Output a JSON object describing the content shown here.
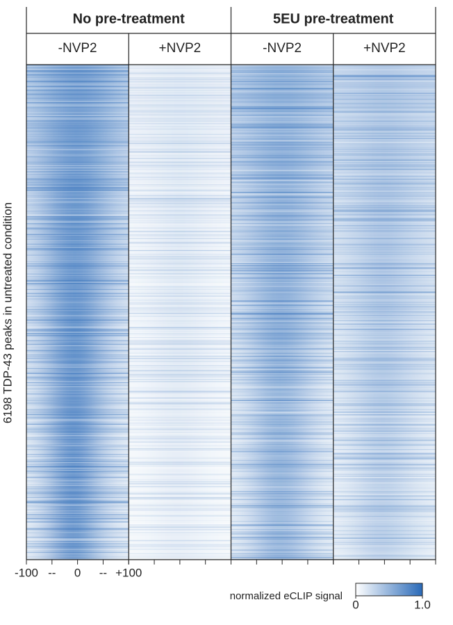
{
  "chart_data": {
    "type": "heatmap",
    "groups": [
      "No pre-treatment",
      "5EU pre-treatment"
    ],
    "ylabel": "6198 TDP-43 peaks in untreated condition",
    "x": [
      -100,
      -75,
      -50,
      -25,
      0,
      25,
      50,
      75,
      100
    ],
    "xlim": [
      -100,
      100
    ],
    "xticks": [
      {
        "value": -100,
        "label": "-100"
      },
      {
        "value": -50,
        "label": "--"
      },
      0,
      {
        "value": 50,
        "label": "--"
      },
      {
        "value": 100,
        "label": "+100"
      }
    ],
    "cmap": [
      "#ffffff",
      "#2a6ab8"
    ],
    "colorbar_label": "normalized eCLIP signal",
    "clim": [
      0,
      1
    ],
    "cticks": [
      0,
      {
        "value": 1,
        "label": "1.0"
      }
    ],
    "panels": [
      {
        "name": "-NVP2",
        "group": 0,
        "values": [
          [
            0.35,
            0.45,
            0.55,
            0.62,
            0.66,
            0.62,
            0.55,
            0.45,
            0.35
          ],
          [
            0.3,
            0.42,
            0.55,
            0.65,
            0.7,
            0.64,
            0.52,
            0.4,
            0.3
          ],
          [
            0.25,
            0.38,
            0.55,
            0.68,
            0.72,
            0.64,
            0.48,
            0.35,
            0.25
          ],
          [
            0.2,
            0.33,
            0.52,
            0.68,
            0.72,
            0.62,
            0.45,
            0.3,
            0.2
          ],
          [
            0.18,
            0.3,
            0.5,
            0.68,
            0.74,
            0.6,
            0.4,
            0.26,
            0.17
          ],
          [
            0.15,
            0.27,
            0.48,
            0.7,
            0.75,
            0.58,
            0.36,
            0.22,
            0.15
          ],
          [
            0.12,
            0.24,
            0.45,
            0.7,
            0.75,
            0.55,
            0.32,
            0.2,
            0.12
          ],
          [
            0.12,
            0.22,
            0.42,
            0.68,
            0.72,
            0.52,
            0.3,
            0.18,
            0.12
          ]
        ]
      },
      {
        "name": "+NVP2",
        "group": 0,
        "values": [
          [
            0.1,
            0.1,
            0.12,
            0.13,
            0.14,
            0.13,
            0.12,
            0.1,
            0.1
          ],
          [
            0.08,
            0.09,
            0.11,
            0.13,
            0.15,
            0.13,
            0.11,
            0.09,
            0.08
          ],
          [
            0.06,
            0.08,
            0.1,
            0.13,
            0.16,
            0.13,
            0.1,
            0.08,
            0.06
          ],
          [
            0.05,
            0.07,
            0.1,
            0.13,
            0.15,
            0.12,
            0.09,
            0.07,
            0.05
          ],
          [
            0.05,
            0.06,
            0.09,
            0.12,
            0.14,
            0.12,
            0.09,
            0.06,
            0.05
          ],
          [
            0.04,
            0.06,
            0.09,
            0.12,
            0.13,
            0.11,
            0.08,
            0.06,
            0.04
          ],
          [
            0.04,
            0.05,
            0.08,
            0.11,
            0.12,
            0.1,
            0.07,
            0.05,
            0.04
          ],
          [
            0.04,
            0.05,
            0.07,
            0.1,
            0.11,
            0.09,
            0.07,
            0.05,
            0.04
          ]
        ]
      },
      {
        "name": "-NVP2",
        "group": 1,
        "values": [
          [
            0.35,
            0.4,
            0.45,
            0.5,
            0.52,
            0.5,
            0.45,
            0.4,
            0.35
          ],
          [
            0.3,
            0.36,
            0.44,
            0.5,
            0.54,
            0.5,
            0.44,
            0.36,
            0.3
          ],
          [
            0.25,
            0.32,
            0.42,
            0.5,
            0.55,
            0.5,
            0.42,
            0.32,
            0.25
          ],
          [
            0.2,
            0.28,
            0.4,
            0.5,
            0.55,
            0.48,
            0.38,
            0.28,
            0.2
          ],
          [
            0.17,
            0.25,
            0.38,
            0.5,
            0.55,
            0.46,
            0.35,
            0.24,
            0.17
          ],
          [
            0.15,
            0.22,
            0.35,
            0.48,
            0.52,
            0.44,
            0.32,
            0.2,
            0.14
          ],
          [
            0.12,
            0.2,
            0.32,
            0.46,
            0.5,
            0.42,
            0.3,
            0.18,
            0.12
          ],
          [
            0.12,
            0.18,
            0.3,
            0.44,
            0.48,
            0.4,
            0.28,
            0.17,
            0.12
          ]
        ]
      },
      {
        "name": "+NVP2",
        "group": 1,
        "values": [
          [
            0.28,
            0.3,
            0.33,
            0.36,
            0.38,
            0.36,
            0.33,
            0.3,
            0.28
          ],
          [
            0.24,
            0.28,
            0.32,
            0.36,
            0.4,
            0.36,
            0.32,
            0.28,
            0.24
          ],
          [
            0.2,
            0.25,
            0.3,
            0.36,
            0.4,
            0.35,
            0.3,
            0.25,
            0.2
          ],
          [
            0.17,
            0.22,
            0.28,
            0.36,
            0.4,
            0.34,
            0.28,
            0.22,
            0.17
          ],
          [
            0.15,
            0.2,
            0.27,
            0.35,
            0.38,
            0.33,
            0.26,
            0.2,
            0.15
          ],
          [
            0.13,
            0.18,
            0.25,
            0.33,
            0.36,
            0.31,
            0.24,
            0.18,
            0.13
          ],
          [
            0.12,
            0.16,
            0.23,
            0.31,
            0.34,
            0.29,
            0.22,
            0.16,
            0.12
          ],
          [
            0.11,
            0.15,
            0.22,
            0.3,
            0.32,
            0.27,
            0.21,
            0.15,
            0.11
          ]
        ]
      }
    ]
  }
}
